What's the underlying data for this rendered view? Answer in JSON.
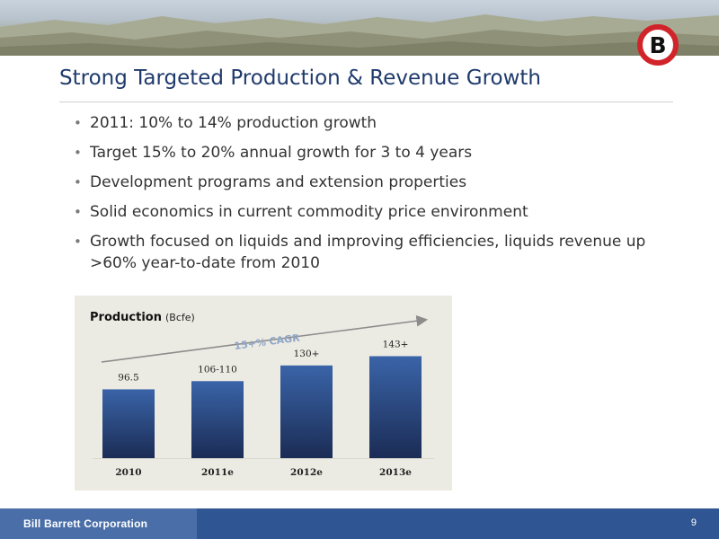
{
  "slide": {
    "title": "Strong Targeted Production & Revenue Growth",
    "logo_letter": "B",
    "bullets": [
      "2011: 10% to 14% production growth",
      "Target 15% to 20% annual growth for 3 to 4 years",
      "Development programs and extension properties",
      "Solid economics in current commodity price environment",
      "Growth focused on liquids and improving efficiencies, liquids revenue up >60% year-to-date from 2010"
    ],
    "bullet_symbol": "•"
  },
  "footer": {
    "company": "Bill Barrett Corporation",
    "page_number": "9"
  },
  "colors": {
    "title": "#1f3a6b",
    "logo_ring": "#d0242a",
    "bar_top": "#3a64a8",
    "bar_bottom": "#1b2c55",
    "footer": "#2f5592",
    "footer_left": "#4a6fa8",
    "panel": "#ecebe3"
  },
  "chart_data": {
    "type": "bar",
    "title": "Production",
    "unit": "(Bcfe)",
    "categories": [
      "2010",
      "2011e",
      "2012e",
      "2013e"
    ],
    "values": [
      96.5,
      108,
      130,
      143
    ],
    "data_labels": [
      "96.5",
      "106-110",
      "130+",
      "143+"
    ],
    "ylim": [
      0,
      160
    ],
    "annotation": "15+% CAGR",
    "grid": false,
    "legend": "none"
  }
}
